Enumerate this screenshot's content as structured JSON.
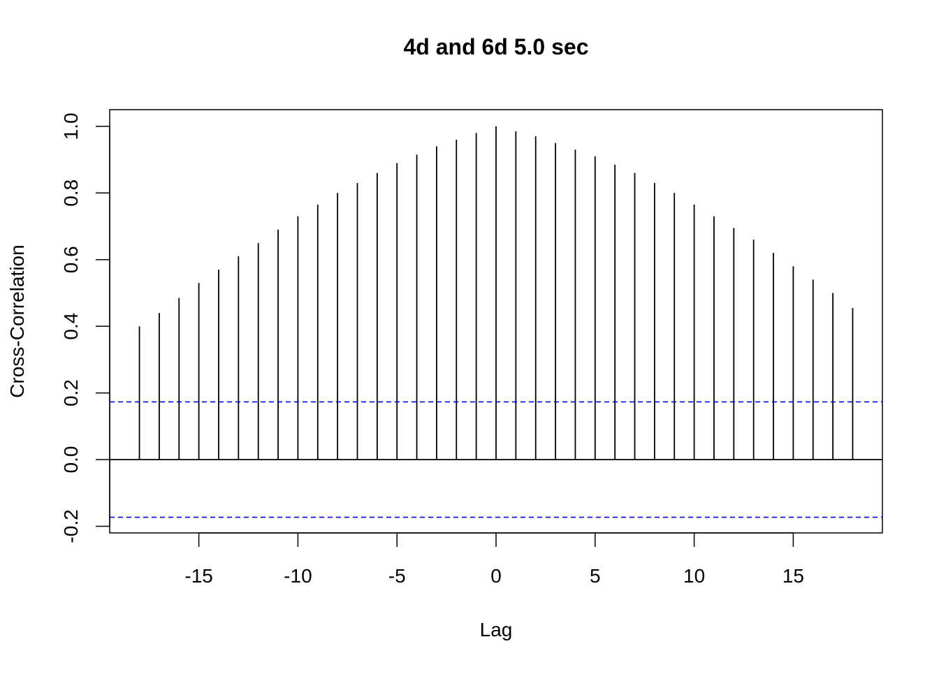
{
  "chart_data": {
    "type": "bar",
    "title": "4d and 6d 5.0 sec",
    "xlabel": "Lag",
    "ylabel": "Cross-Correlation",
    "xlim": [
      -19.5,
      19.5
    ],
    "ylim": [
      -0.22,
      1.05
    ],
    "x_ticks": [
      -15,
      -10,
      -5,
      0,
      5,
      10,
      15
    ],
    "x_tick_labels": [
      "-15",
      "-10",
      "-5",
      "0",
      "5",
      "10",
      "15"
    ],
    "y_ticks": [
      -0.2,
      0.0,
      0.2,
      0.4,
      0.6,
      0.8,
      1.0
    ],
    "y_tick_labels": [
      "-0.2",
      "0.0",
      "0.2",
      "0.4",
      "0.6",
      "0.8",
      "1.0"
    ],
    "lags": [
      -18,
      -17,
      -16,
      -15,
      -14,
      -13,
      -12,
      -11,
      -10,
      -9,
      -8,
      -7,
      -6,
      -5,
      -4,
      -3,
      -2,
      -1,
      0,
      1,
      2,
      3,
      4,
      5,
      6,
      7,
      8,
      9,
      10,
      11,
      12,
      13,
      14,
      15,
      16,
      17,
      18
    ],
    "values": [
      0.4,
      0.44,
      0.485,
      0.53,
      0.57,
      0.61,
      0.65,
      0.69,
      0.73,
      0.765,
      0.8,
      0.83,
      0.86,
      0.89,
      0.915,
      0.94,
      0.96,
      0.98,
      1.0,
      0.985,
      0.97,
      0.95,
      0.93,
      0.91,
      0.885,
      0.86,
      0.83,
      0.8,
      0.765,
      0.73,
      0.695,
      0.66,
      0.62,
      0.58,
      0.54,
      0.5,
      0.455
    ],
    "confidence_bounds": [
      0.173,
      -0.173
    ],
    "zero_line": 0,
    "colors": {
      "spikes": "#000000",
      "confidence": "#0000ff",
      "axes": "#000000"
    },
    "grid": false,
    "legend": "none"
  }
}
